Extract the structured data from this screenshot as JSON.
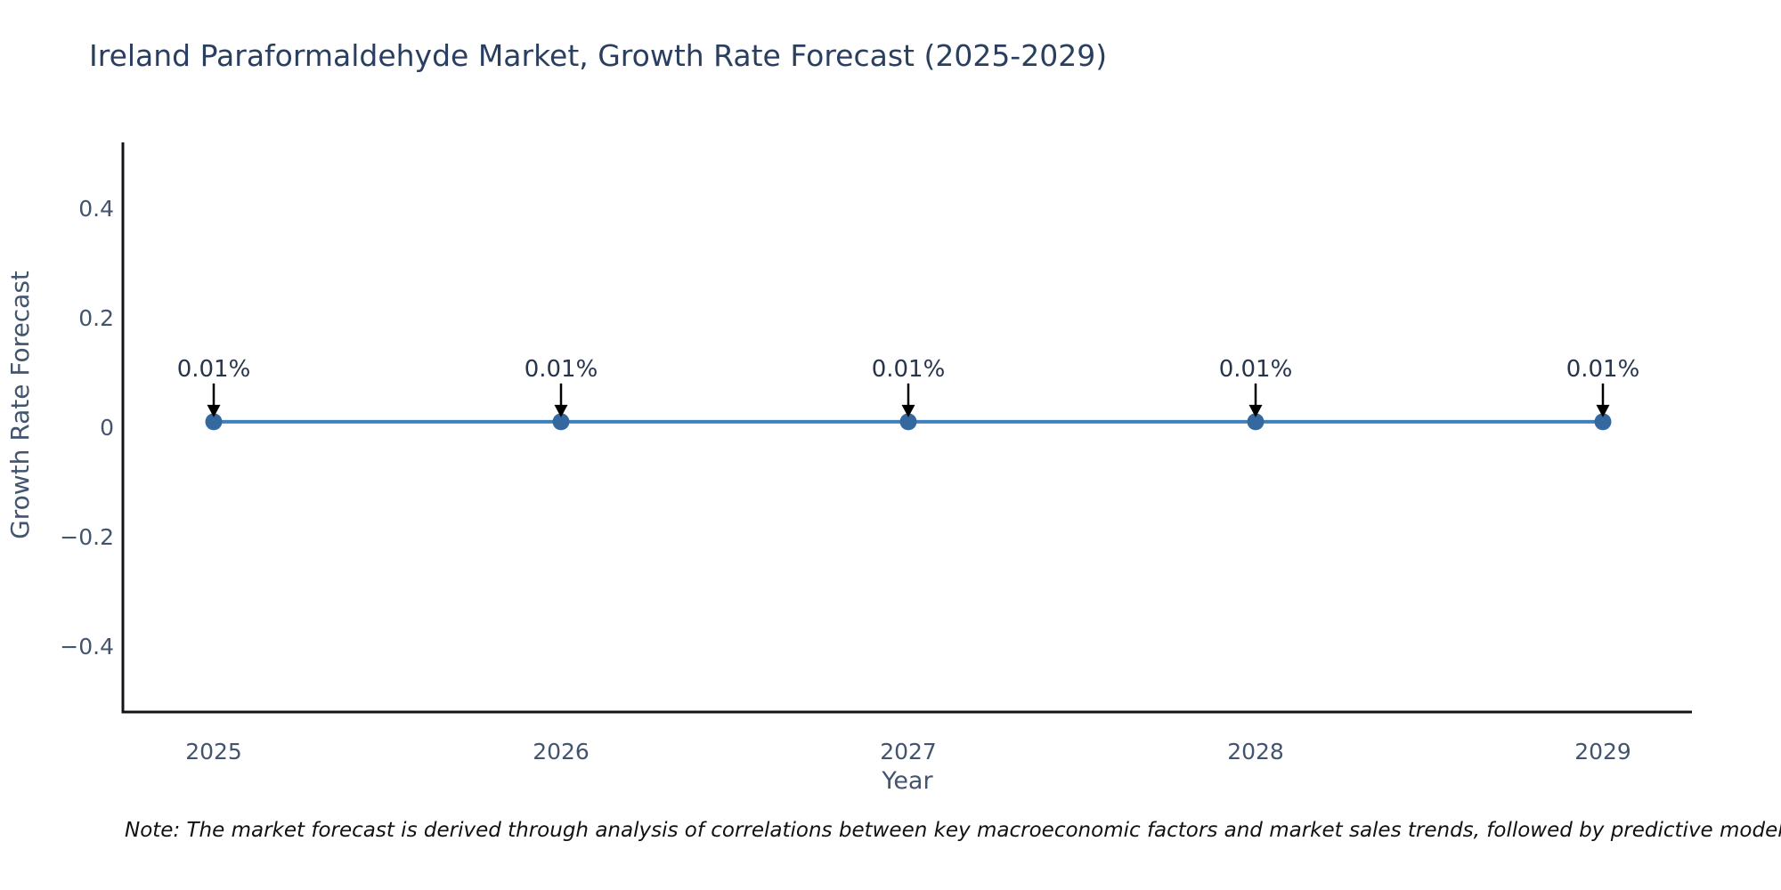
{
  "header": {
    "title": "Ireland Paraformaldehyde Market, Growth Rate Forecast (2025-2029)"
  },
  "chart_data": {
    "type": "line",
    "title": "Ireland Paraformaldehyde Market, Growth Rate Forecast (2025-2029)",
    "x": [
      2025,
      2026,
      2027,
      2028,
      2029
    ],
    "x_tick_labels": [
      "2025",
      "2026",
      "2027",
      "2028",
      "2029"
    ],
    "series": [
      {
        "name": "Growth Rate Forecast",
        "values": [
          0.01,
          0.01,
          0.01,
          0.01,
          0.01
        ]
      }
    ],
    "point_labels": [
      "0.01%",
      "0.01%",
      "0.01%",
      "0.01%",
      "0.01%"
    ],
    "xlabel": "Year",
    "ylabel": "Growth Rate Forecast",
    "y_ticks": [
      0.4,
      0.2,
      0,
      -0.2,
      -0.4
    ],
    "y_tick_labels": [
      "0.4",
      "0.2",
      "0",
      "−0.2",
      "−0.4"
    ],
    "ylim": [
      -0.52,
      0.52
    ],
    "grid": false,
    "legend": false,
    "colors": {
      "line": "#3f81bd",
      "marker": "#34689e",
      "axis": "#111418",
      "tick_label": "#42546e",
      "title": "#2a3f5f",
      "annotation": "#26354d",
      "arrow": "#000000",
      "background": "#ffffff"
    }
  },
  "footer": {
    "note": "Note: The market forecast is derived through analysis of correlations between key macroeconomic factors and market sales trends, followed by predictive modeling to project future sales"
  }
}
